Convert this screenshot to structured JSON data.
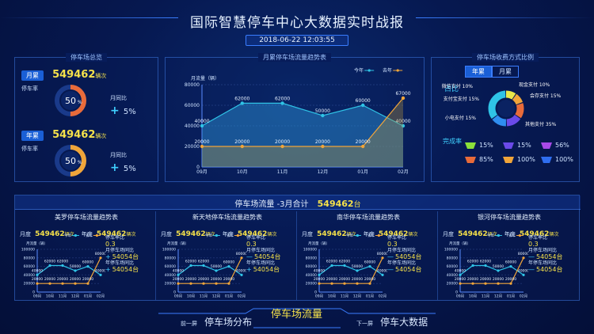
{
  "header": {
    "title": "国际智慧停车中心大数据实时战报",
    "datetime": "2018-06-22  12:03:55"
  },
  "left_panel": {
    "title": "停车场总览",
    "monthly": {
      "tag": "月累",
      "value": "549462",
      "unit": "辆次",
      "gauge_label": "停车率",
      "gauge_value": "50",
      "gauge_pct": 50,
      "gauge_color": "#e86b3a",
      "mom_label": "月同比",
      "mom_sign": "+",
      "mom_value": "5%"
    },
    "yearly": {
      "tag": "年累",
      "value": "549462",
      "unit": "辆次",
      "gauge_label": "停车率",
      "gauge_value": "50",
      "gauge_pct": 50,
      "gauge_color": "#f0a53a",
      "mom_label": "月同比",
      "mom_sign": "+",
      "mom_value": "5%"
    }
  },
  "center_panel": {
    "title": "月累停车场流量趋势表",
    "ylabel": "月流量（辆）",
    "legend": [
      "今年",
      "去年"
    ],
    "colors": {
      "this_year": "#2fc3e6",
      "last_year": "#f0a53a"
    }
  },
  "right_panel": {
    "title": "停车场收费方式比例",
    "tabs": [
      "年累",
      "月累"
    ],
    "ratio_label": "占比",
    "donut": [
      {
        "label": "微信支付",
        "pct": "10%",
        "color": "#e8e84a"
      },
      {
        "label": "现金支付",
        "pct": "10%",
        "color": "#f0a53a"
      },
      {
        "label": "会存支付",
        "pct": "15%",
        "color": "#e86b3a"
      },
      {
        "label": "支付宝支付",
        "pct": "15%",
        "color": "#6a4ae8"
      },
      {
        "label": "小电支付",
        "pct": "15%",
        "color": "#2f8ef0"
      },
      {
        "label": "其他支付",
        "pct": "35%",
        "color": "#2fc3e6"
      }
    ],
    "completion_label": "完成率",
    "completion": [
      {
        "value": "15%",
        "color": "#8be03a"
      },
      {
        "value": "15%",
        "color": "#6a4ae8"
      },
      {
        "value": "56%",
        "color": "#a84ae8"
      },
      {
        "value": "85%",
        "color": "#e86b3a"
      },
      {
        "value": "100%",
        "color": "#f0a53a"
      },
      {
        "value": "100%",
        "color": "#2f6ef0"
      }
    ]
  },
  "bottom": {
    "summary_label": "停车场流量 -3月合计",
    "summary_value": "549462",
    "summary_unit": "台",
    "lots": [
      {
        "title": "美罗停车场流量趋势表"
      },
      {
        "title": "新天地停车场流量趋势表"
      },
      {
        "title": "南华停车场流量趋势表"
      },
      {
        "title": "银河停车场流量趋势表"
      }
    ],
    "lot_common": {
      "month_tag": "月度",
      "month_value": "549462",
      "month_unit": "辆次",
      "year_tag": "年度",
      "year_value": "549462",
      "year_unit": "辆次",
      "ylabel": "月流量（辆）",
      "legend": [
        "今年",
        "去年"
      ],
      "rate_label": "停车率比",
      "rate_value": "0.3",
      "mom_label": "月停车场同比",
      "mom_value": "54054台",
      "yoy_label": "年停车场同比",
      "yoy_value": "54054台"
    },
    "lot_signs": [
      {
        "mom": "+",
        "yoy": "+"
      },
      {
        "mom": "—",
        "yoy": "+"
      },
      {
        "mom": "—",
        "yoy": "—"
      },
      {
        "mom": "—",
        "yoy": "—"
      }
    ]
  },
  "nav": {
    "prev_label": "前一屏",
    "prev_title": "停车场分布",
    "current": "停车场流量",
    "next_label": "下一屏",
    "next_title": "停车大数据"
  },
  "chart_data": [
    {
      "type": "area",
      "title": "月累停车场流量趋势表",
      "ylabel": "月流量（辆）",
      "categories": [
        "09月",
        "10月",
        "11月",
        "12月",
        "01月",
        "02月"
      ],
      "ylim": [
        0,
        80000
      ],
      "yticks": [
        0,
        20000,
        40000,
        60000,
        80000
      ],
      "series": [
        {
          "name": "今年",
          "values": [
            40000,
            62000,
            62000,
            50000,
            60000,
            40000
          ]
        },
        {
          "name": "去年",
          "values": [
            20000,
            20000,
            20000,
            20000,
            20000,
            67000
          ]
        }
      ]
    },
    {
      "type": "line",
      "title": "美罗停车场流量趋势表",
      "categories": [
        "09月",
        "10月",
        "11月",
        "12月",
        "01月",
        "02月"
      ],
      "ylim": [
        0,
        100000
      ],
      "yticks": [
        0,
        20000,
        40000,
        60000,
        80000,
        100000
      ],
      "series": [
        {
          "name": "今年",
          "values": [
            40000,
            62000,
            62000,
            50000,
            60000,
            40000
          ]
        },
        {
          "name": "去年",
          "values": [
            20000,
            20000,
            20000,
            20000,
            20000,
            80000
          ]
        }
      ]
    },
    {
      "type": "line",
      "title": "新天地停车场流量趋势表",
      "categories": [
        "09月",
        "10月",
        "11月",
        "12月",
        "01月",
        "02月"
      ],
      "ylim": [
        0,
        100000
      ],
      "yticks": [
        0,
        20000,
        40000,
        60000,
        80000,
        100000
      ],
      "series": [
        {
          "name": "今年",
          "values": [
            40000,
            62000,
            62000,
            50000,
            60000,
            40000
          ]
        },
        {
          "name": "去年",
          "values": [
            20000,
            20000,
            20000,
            20000,
            20000,
            80000
          ]
        }
      ]
    },
    {
      "type": "line",
      "title": "南华停车场流量趋势表",
      "categories": [
        "09月",
        "10月",
        "11月",
        "12月",
        "01月",
        "02月"
      ],
      "ylim": [
        0,
        100000
      ],
      "yticks": [
        0,
        20000,
        40000,
        60000,
        80000,
        100000
      ],
      "series": [
        {
          "name": "今年",
          "values": [
            40000,
            62000,
            62000,
            50000,
            60000,
            40000
          ]
        },
        {
          "name": "去年",
          "values": [
            20000,
            20000,
            20000,
            20000,
            20000,
            80000
          ]
        }
      ]
    },
    {
      "type": "line",
      "title": "银河停车场流量趋势表",
      "categories": [
        "09月",
        "10月",
        "11月",
        "12月",
        "01月",
        "02月"
      ],
      "ylim": [
        0,
        100000
      ],
      "yticks": [
        0,
        20000,
        40000,
        60000,
        80000,
        100000
      ],
      "series": [
        {
          "name": "今年",
          "values": [
            40000,
            62000,
            62000,
            50000,
            60000,
            40000
          ]
        },
        {
          "name": "去年",
          "values": [
            20000,
            20000,
            20000,
            20000,
            20000,
            80000
          ]
        }
      ]
    }
  ]
}
